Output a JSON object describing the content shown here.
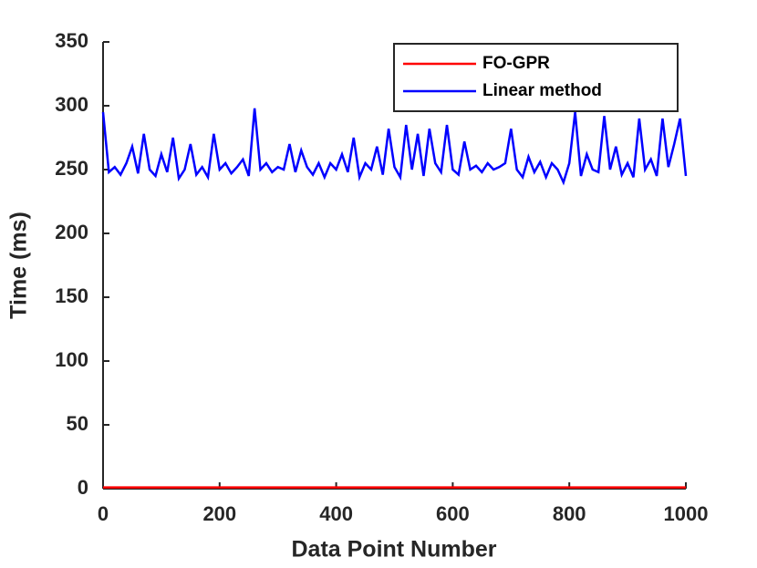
{
  "chart_data": {
    "type": "line",
    "x_label": "Data Point Number",
    "y_label": "Time (ms)",
    "x": [
      0,
      10,
      20,
      30,
      40,
      50,
      60,
      70,
      80,
      90,
      100,
      110,
      120,
      130,
      140,
      150,
      160,
      170,
      180,
      190,
      200,
      210,
      220,
      230,
      240,
      250,
      260,
      270,
      280,
      290,
      300,
      310,
      320,
      330,
      340,
      350,
      360,
      370,
      380,
      390,
      400,
      410,
      420,
      430,
      440,
      450,
      460,
      470,
      480,
      490,
      500,
      510,
      520,
      530,
      540,
      550,
      560,
      570,
      580,
      590,
      600,
      610,
      620,
      630,
      640,
      650,
      660,
      670,
      680,
      690,
      700,
      710,
      720,
      730,
      740,
      750,
      760,
      770,
      780,
      790,
      800,
      810,
      820,
      830,
      840,
      850,
      860,
      870,
      880,
      890,
      900,
      910,
      920,
      930,
      940,
      950,
      960,
      970,
      980,
      990,
      1000
    ],
    "series": [
      {
        "name": "FO-GPR",
        "color": "#ff0000",
        "values": [
          1,
          1,
          1,
          1,
          1,
          1,
          1,
          1,
          1,
          1,
          1,
          1,
          1,
          1,
          1,
          1,
          1,
          1,
          1,
          1,
          1,
          1,
          1,
          1,
          1,
          1,
          1,
          1,
          1,
          1,
          1,
          1,
          1,
          1,
          1,
          1,
          1,
          1,
          1,
          1,
          1,
          1,
          1,
          1,
          1,
          1,
          1,
          1,
          1,
          1,
          1,
          1,
          1,
          1,
          1,
          1,
          1,
          1,
          1,
          1,
          1,
          1,
          1,
          1,
          1,
          1,
          1,
          1,
          1,
          1,
          1,
          1,
          1,
          1,
          1,
          1,
          1,
          1,
          1,
          1,
          1,
          1,
          1,
          1,
          1,
          1,
          1,
          1,
          1,
          1,
          1,
          1,
          1,
          1,
          1,
          1,
          1,
          1,
          1,
          1,
          1
        ]
      },
      {
        "name": "Linear method",
        "color": "#0000ff",
        "values": [
          295,
          248,
          252,
          246,
          255,
          268,
          247,
          278,
          250,
          245,
          262,
          248,
          275,
          243,
          250,
          270,
          246,
          252,
          244,
          278,
          250,
          255,
          247,
          252,
          258,
          245,
          298,
          250,
          255,
          248,
          252,
          250,
          270,
          248,
          265,
          252,
          246,
          255,
          244,
          255,
          250,
          262,
          248,
          275,
          244,
          255,
          250,
          268,
          246,
          282,
          252,
          244,
          285,
          250,
          278,
          245,
          282,
          255,
          248,
          285,
          250,
          246,
          272,
          250,
          253,
          248,
          255,
          250,
          252,
          255,
          282,
          250,
          244,
          260,
          248,
          256,
          244,
          255,
          250,
          240,
          255,
          295,
          245,
          262,
          250,
          248,
          292,
          250,
          268,
          246,
          255,
          244,
          290,
          250,
          258,
          245,
          290,
          252,
          270,
          290,
          245
        ]
      }
    ],
    "xlim": [
      0,
      1000
    ],
    "ylim": [
      0,
      350
    ],
    "xticks": [
      0,
      200,
      400,
      600,
      800,
      1000
    ],
    "yticks": [
      0,
      50,
      100,
      150,
      200,
      250,
      300,
      350
    ],
    "legend": "top-right"
  }
}
